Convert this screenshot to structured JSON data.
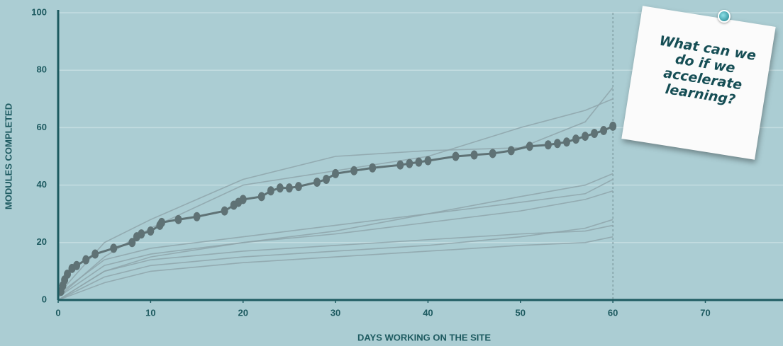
{
  "chart_data": {
    "type": "line",
    "xlabel": "DAYS WORKING ON THE SITE",
    "ylabel": "MODULES COMPLETED",
    "annotation": "What can we do if we accelerate learning?",
    "xlim": [
      0,
      78.4
    ],
    "ylim": [
      0,
      100
    ],
    "xticks": [
      0,
      10,
      20,
      30,
      40,
      50,
      60,
      70
    ],
    "yticks": [
      0,
      20,
      40,
      60,
      80,
      100
    ],
    "vline_x": 60,
    "grid": true,
    "series": [
      {
        "color": "#8ea5aa",
        "x": [
          0,
          5,
          10,
          20,
          30,
          40,
          50,
          57,
          60
        ],
        "values": [
          2,
          20,
          28,
          42,
          50,
          52,
          53,
          62,
          74
        ]
      },
      {
        "color": "#8ea5aa",
        "x": [
          0,
          5,
          10,
          20,
          30,
          40,
          50,
          57,
          60
        ],
        "values": [
          1,
          15,
          25,
          40,
          45,
          50,
          60,
          66,
          70
        ]
      },
      {
        "color": "#8ea5aa",
        "x": [
          0,
          5,
          10,
          20,
          30,
          40,
          50,
          57,
          60
        ],
        "values": [
          0,
          10,
          15,
          20,
          24,
          30,
          36,
          40,
          44
        ]
      },
      {
        "color": "#8ea5aa",
        "x": [
          0,
          5,
          10,
          20,
          30,
          40,
          50,
          57,
          60
        ],
        "values": [
          1,
          12,
          16,
          20,
          23,
          27,
          31,
          35,
          38
        ]
      },
      {
        "color": "#8ea5aa",
        "x": [
          0,
          5,
          10,
          20,
          30,
          40,
          50,
          57,
          60
        ],
        "values": [
          0,
          8,
          12,
          15,
          17,
          19,
          22,
          25,
          28
        ]
      },
      {
        "color": "#8ea5aa",
        "x": [
          0,
          5,
          10,
          20,
          30,
          40,
          50,
          57,
          60
        ],
        "values": [
          0,
          10,
          14,
          17,
          19,
          21,
          23,
          24,
          26
        ]
      },
      {
        "color": "#8ea5aa",
        "x": [
          0,
          5,
          10,
          20,
          30,
          40,
          50,
          57,
          60
        ],
        "values": [
          0,
          6,
          10,
          13,
          15,
          17,
          19,
          20,
          22
        ]
      },
      {
        "color": "#8ea5aa",
        "x": [
          0,
          5,
          10,
          20,
          30,
          40,
          50,
          57,
          60
        ],
        "values": [
          2,
          14,
          18,
          22,
          26,
          30,
          34,
          37,
          42
        ]
      },
      {
        "color": "#5f7275",
        "markers": true,
        "x": [
          0.3,
          0.5,
          0.7,
          1,
          1.5,
          2,
          3,
          4,
          6,
          8,
          8.5,
          9,
          10,
          11,
          11.2,
          13,
          15,
          18,
          19,
          19.5,
          20,
          22,
          23,
          24,
          25,
          26,
          28,
          29,
          30,
          32,
          34,
          37,
          38,
          39,
          40,
          43,
          45,
          47,
          49,
          51,
          53,
          54,
          55,
          56,
          57,
          58,
          59,
          60
        ],
        "values": [
          3,
          5,
          7,
          9,
          11,
          12,
          14,
          16,
          18,
          20,
          22,
          23,
          24,
          26,
          27,
          28,
          29,
          31,
          33,
          34,
          35,
          36,
          38,
          39,
          39,
          39.5,
          41,
          42,
          44,
          45,
          46,
          47,
          47.5,
          48,
          48.5,
          50,
          50.5,
          51,
          52,
          53.5,
          54,
          54.5,
          55,
          56,
          57,
          58,
          59,
          60.5
        ]
      }
    ]
  }
}
